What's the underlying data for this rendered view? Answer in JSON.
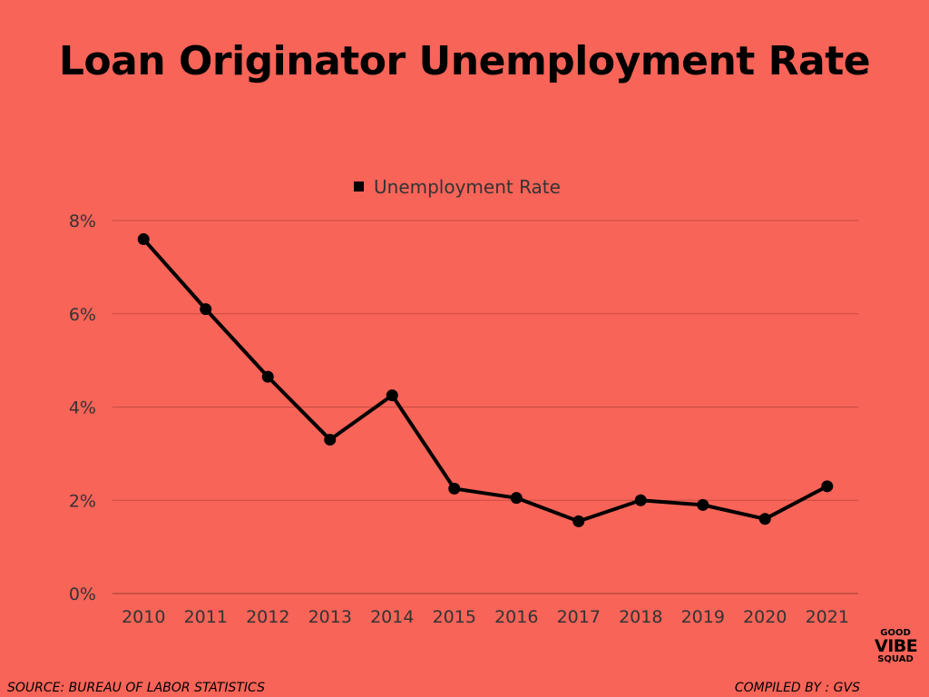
{
  "title": "Loan Originator Unemployment Rate",
  "footer": {
    "source": "SOURCE: BUREAU OF LABOR STATISTICS",
    "compiled_by": "COMPILED BY : GVS"
  },
  "logo": {
    "line1": "GOOD",
    "line2": "VIBE",
    "line3": "SQUAD"
  },
  "colors": {
    "background": "#F96458",
    "line": "#000000",
    "grid": "#C74B41",
    "text": "#333333"
  },
  "chart_data": {
    "type": "line",
    "title": "Loan Originator Unemployment Rate",
    "xlabel": "",
    "ylabel": "",
    "categories": [
      "2010",
      "2011",
      "2012",
      "2013",
      "2014",
      "2015",
      "2016",
      "2017",
      "2018",
      "2019",
      "2020",
      "2021"
    ],
    "series": [
      {
        "name": "Unemployment Rate",
        "values": [
          7.6,
          6.1,
          4.65,
          3.3,
          4.25,
          2.25,
          2.05,
          1.55,
          2.0,
          1.9,
          1.6,
          2.3
        ]
      }
    ],
    "ylim": [
      0,
      8
    ],
    "yticks": [
      0,
      2,
      4,
      6,
      8
    ],
    "ytick_labels": [
      "0%",
      "2%",
      "4%",
      "6%",
      "8%"
    ],
    "grid": true,
    "legend_position": "top-center"
  }
}
